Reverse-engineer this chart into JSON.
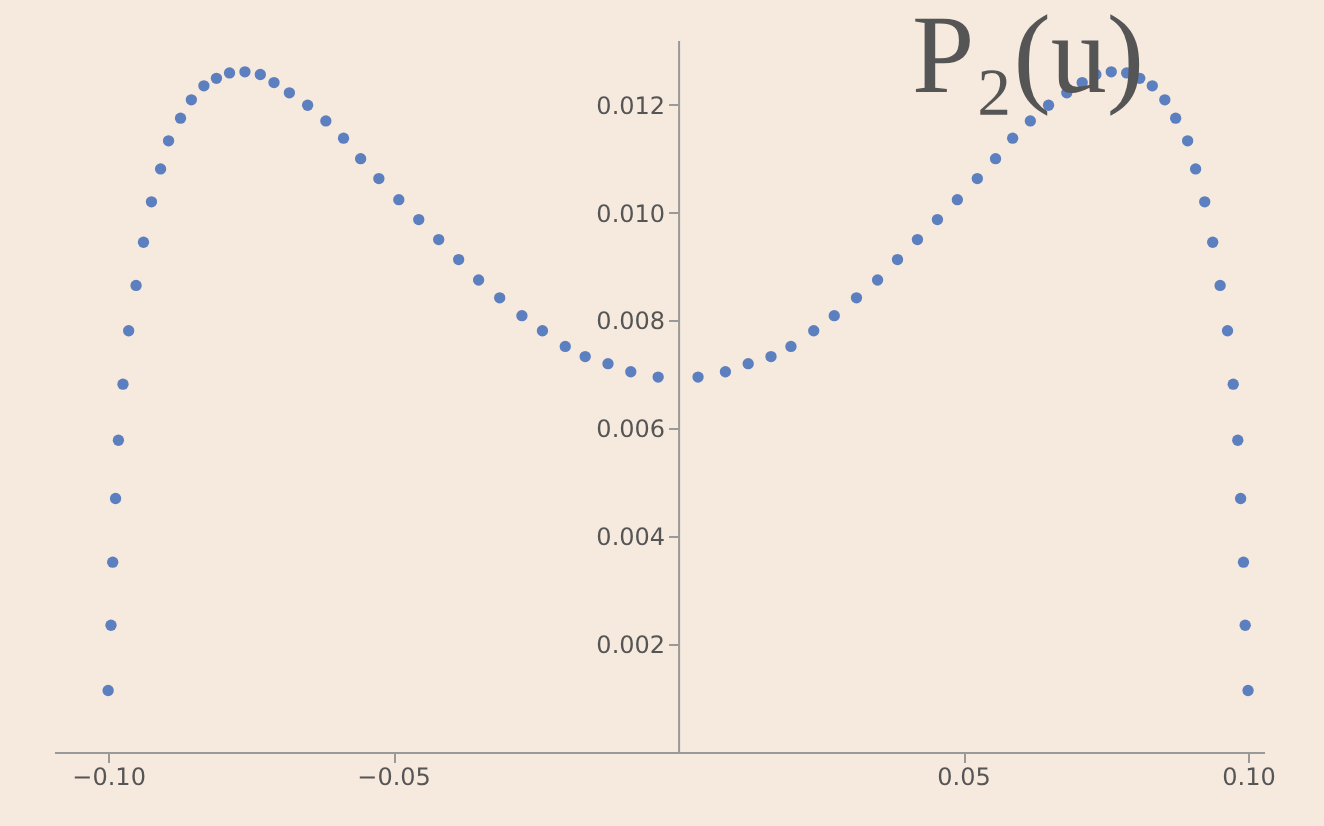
{
  "chart_data": {
    "type": "scatter",
    "title": "P₂(u)",
    "x": [
      -0.1,
      -0.0995,
      -0.0992,
      -0.0987,
      -0.0982,
      -0.0974,
      -0.0964,
      -0.0951,
      -0.0938,
      -0.0924,
      -0.0908,
      -0.0894,
      -0.0873,
      -0.0854,
      -0.0832,
      -0.081,
      -0.0787,
      -0.076,
      -0.0733,
      -0.0709,
      -0.0682,
      -0.065,
      -0.0618,
      -0.0587,
      -0.0557,
      -0.0525,
      -0.049,
      -0.0455,
      -0.042,
      -0.0385,
      -0.035,
      -0.0313,
      -0.0274,
      -0.0238,
      -0.0198,
      -0.0163,
      -0.0123,
      -0.0083,
      -0.0035,
      0.0035,
      0.0083,
      0.0123,
      0.0163,
      0.0198,
      0.0238,
      0.0274,
      0.0313,
      0.035,
      0.0385,
      0.042,
      0.0455,
      0.049,
      0.0525,
      0.0557,
      0.0587,
      0.0618,
      0.065,
      0.0682,
      0.0709,
      0.0733,
      0.076,
      0.0787,
      0.081,
      0.0832,
      0.0854,
      0.0873,
      0.0894,
      0.0908,
      0.0924,
      0.0938,
      0.0951,
      0.0964,
      0.0974,
      0.0982,
      0.0987,
      0.0992,
      0.0995,
      0.1
    ],
    "series": [
      {
        "color": "#5b7fbf",
        "values": [
          0.00114,
          0.00235,
          0.00352,
          0.0047,
          0.00578,
          0.00682,
          0.00781,
          0.00865,
          0.00945,
          0.0102,
          0.01081,
          0.01133,
          0.01175,
          0.01209,
          0.01235,
          0.01249,
          0.01259,
          0.01261,
          0.01256,
          0.01241,
          0.01222,
          0.01199,
          0.0117,
          0.01138,
          0.011,
          0.01063,
          0.01024,
          0.00987,
          0.0095,
          0.00913,
          0.00875,
          0.00842,
          0.00809,
          0.00781,
          0.00752,
          0.00733,
          0.0072,
          0.00705,
          0.00695,
          0.00695,
          0.00705,
          0.0072,
          0.00733,
          0.00752,
          0.00781,
          0.00809,
          0.00842,
          0.00875,
          0.00913,
          0.0095,
          0.00987,
          0.01024,
          0.01063,
          0.011,
          0.01138,
          0.0117,
          0.01199,
          0.01222,
          0.01241,
          0.01256,
          0.01261,
          0.01259,
          0.01249,
          0.01235,
          0.01209,
          0.01175,
          0.01133,
          0.01081,
          0.0102,
          0.00945,
          0.00865,
          0.00781,
          0.00682,
          0.00578,
          0.0047,
          0.00352,
          0.00235,
          0.00114
        ]
      }
    ],
    "xlim": [
      -0.1095,
      0.1028
    ],
    "ylim": [
      0,
      0.0132
    ],
    "xticks": [
      {
        "value": -0.1,
        "label": "−0.10"
      },
      {
        "value": -0.05,
        "label": "−0.05"
      },
      0.05,
      {
        "value": 0.1,
        "label": "0.10"
      }
    ],
    "yticks": [
      0.002,
      0.004,
      0.006,
      0.008,
      {
        "value": 0.01,
        "label": "0.010"
      },
      0.012
    ],
    "grid": false,
    "marker": "circle"
  }
}
